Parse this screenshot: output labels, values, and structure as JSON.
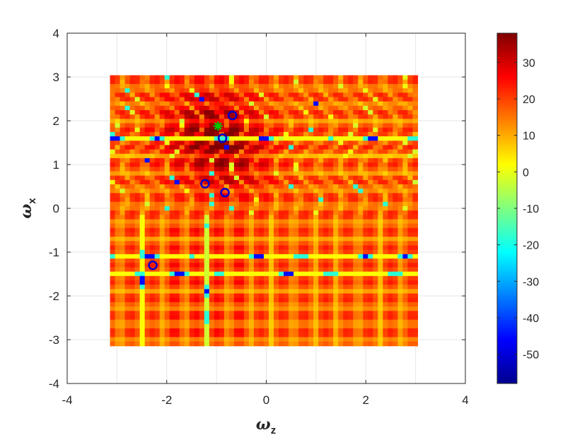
{
  "chart_data": {
    "type": "heatmap",
    "title": "",
    "xlabel": {
      "symbol": "ω",
      "sub": "z"
    },
    "ylabel": {
      "symbol": "ω",
      "sub": "x"
    },
    "xlim": [
      -4,
      4
    ],
    "ylim": [
      -4,
      4
    ],
    "xticks": [
      "-4",
      "-2",
      "0",
      "2",
      "4"
    ],
    "yticks": [
      "4",
      "3",
      "2",
      "1",
      "0",
      "-1",
      "-2",
      "-3",
      "-4"
    ],
    "grid": true,
    "colormap": "jet",
    "data_extent": {
      "x": [
        -3.14,
        3.04
      ],
      "y": [
        -3.14,
        3.04
      ]
    },
    "colorbar": {
      "range": [
        -58,
        38
      ],
      "ticks": [
        "30",
        "20",
        "10",
        "0",
        "-10",
        "-20",
        "-30",
        "-40",
        "-50"
      ]
    },
    "markers": [
      {
        "x": -0.68,
        "y": 2.12,
        "style": "circle",
        "color": "#0000cc"
      },
      {
        "x": -0.88,
        "y": 1.6,
        "style": "circle",
        "color": "#0000cc"
      },
      {
        "x": -1.23,
        "y": 0.56,
        "style": "circle",
        "color": "#0000cc"
      },
      {
        "x": -0.83,
        "y": 0.36,
        "style": "circle",
        "color": "#0000cc"
      },
      {
        "x": -2.28,
        "y": -1.3,
        "style": "circle",
        "color": "#0000cc"
      },
      {
        "x": -0.97,
        "y": 1.88,
        "style": "asterisk",
        "color": "#00cc00"
      }
    ]
  }
}
